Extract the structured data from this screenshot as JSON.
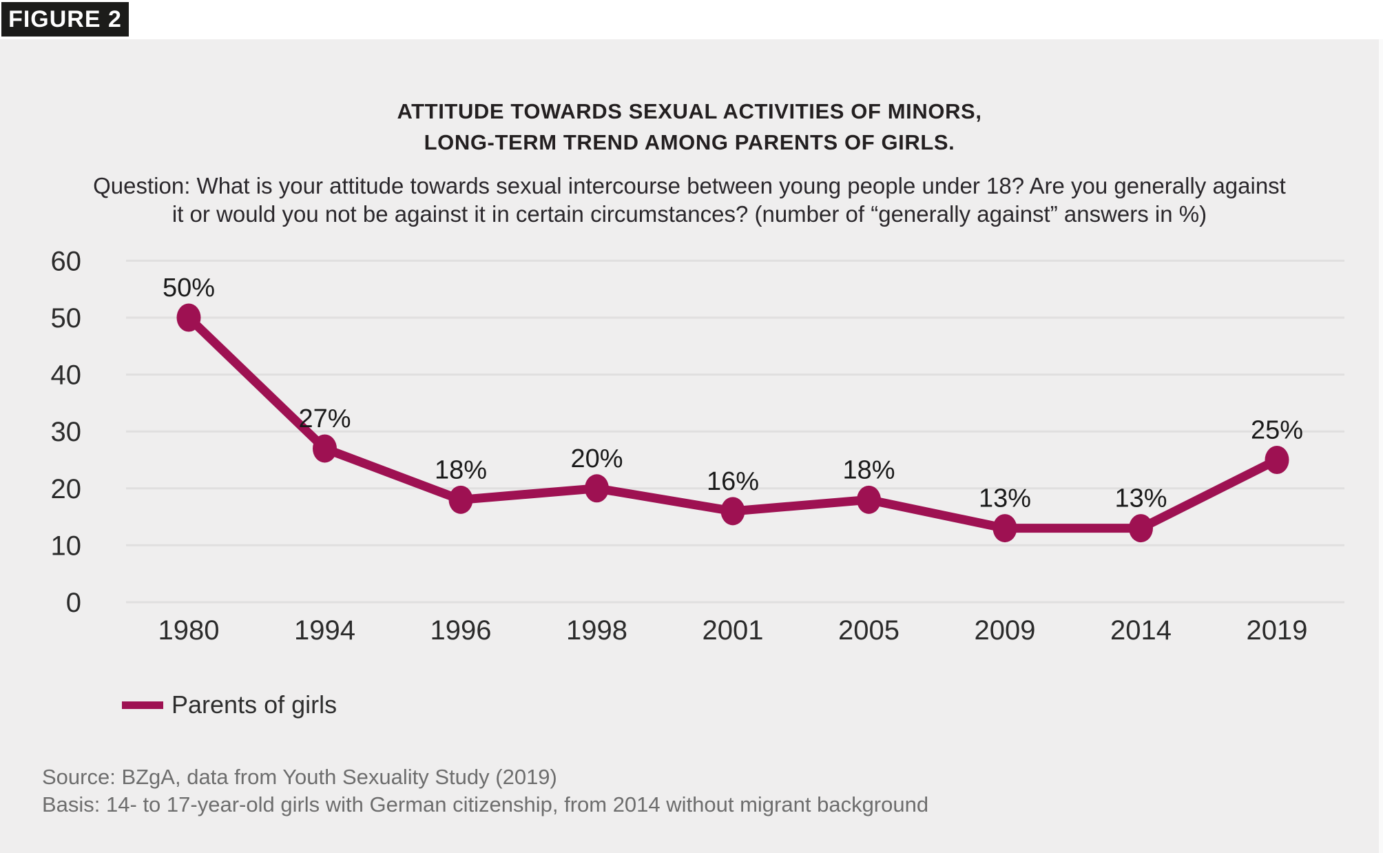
{
  "figure_label": "FIGURE 2",
  "title": {
    "line1": "ATTITUDE TOWARDS SEXUAL ACTIVITIES OF MINORS,",
    "line2": "LONG-TERM TREND AMONG PARENTS OF GIRLS."
  },
  "question": {
    "line1": "Question: What is your attitude towards sexual intercourse between young people under 18? Are you generally against",
    "line2": "it or would you not be against it in certain circumstances? (number of “generally against” answers in %)"
  },
  "legend": {
    "label": "Parents of girls"
  },
  "source": {
    "line1": "Source: BZgA, data from Youth Sexuality Study (2019)",
    "line2": "Basis: 14- to 17-year-old girls with German citizenship, from 2014 without migrant background"
  },
  "colors": {
    "series": "#9e1152",
    "panel_background": "#efeeee",
    "grid": "#e0dfdf",
    "tick_text": "#2b2b2b",
    "data_label_text": "#1a1a1a",
    "source_text": "#6d6d6d",
    "badge_background": "#1c1c1a"
  },
  "chart_data": {
    "type": "line",
    "title": "ATTITUDE TOWARDS SEXUAL ACTIVITIES OF MINORS, LONG-TERM TREND AMONG PARENTS OF GIRLS.",
    "subtitle": "Question: What is your attitude towards sexual intercourse between young people under 18? Are you generally against it or would you not be against it in certain circumstances? (number of “generally against” answers in %)",
    "categories": [
      "1980",
      "1994",
      "1996",
      "1998",
      "2001",
      "2005",
      "2009",
      "2014",
      "2019"
    ],
    "series": [
      {
        "name": "Parents of girls",
        "values": [
          50,
          27,
          18,
          20,
          16,
          18,
          13,
          13,
          25
        ]
      }
    ],
    "data_labels": [
      "50%",
      "27%",
      "18%",
      "20%",
      "16%",
      "18%",
      "13%",
      "13%",
      "25%"
    ],
    "xlabel": "",
    "ylabel": "",
    "ylim": [
      0,
      60
    ],
    "yticks": [
      0,
      10,
      20,
      30,
      40,
      50,
      60
    ],
    "grid": true,
    "legend_position": "bottom-left"
  }
}
